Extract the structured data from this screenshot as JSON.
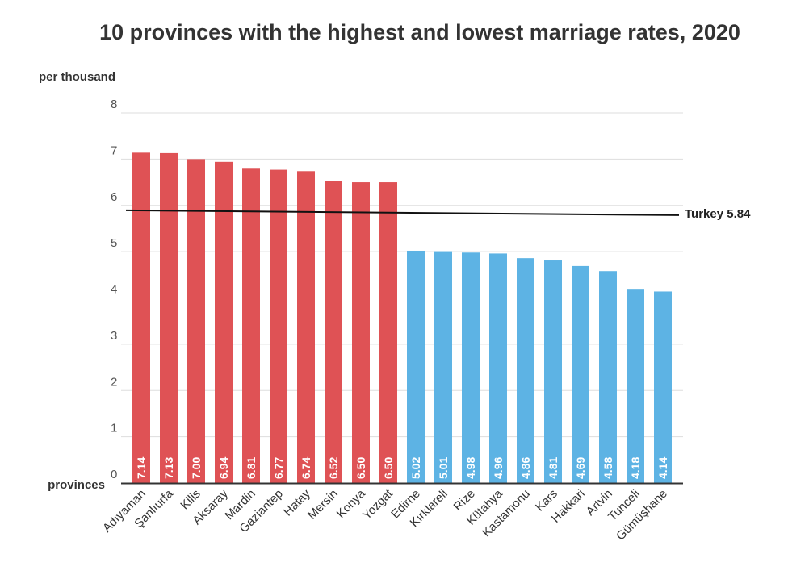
{
  "chart_data": {
    "type": "bar",
    "title": "10 provinces with the highest and lowest marriage rates, 2020",
    "ylabel": "per thousand",
    "xlabel": "provinces",
    "ylim": [
      0,
      8
    ],
    "yticks": [
      0,
      1,
      2,
      3,
      4,
      5,
      6,
      7,
      8
    ],
    "grid": true,
    "categories": [
      "Adıyaman",
      "Şanlıurfa",
      "Kilis",
      "Aksaray",
      "Mardin",
      "Gaziantep",
      "Hatay",
      "Mersin",
      "Konya",
      "Yozgat",
      "Edirne",
      "Kırklareli",
      "Rize",
      "Kütahya",
      "Kastamonu",
      "Kars",
      "Hakkari",
      "Artvin",
      "Tunceli",
      "Gümüşhane"
    ],
    "values": [
      7.14,
      7.13,
      7.0,
      6.94,
      6.81,
      6.77,
      6.74,
      6.52,
      6.5,
      6.5,
      5.02,
      5.01,
      4.98,
      4.96,
      4.86,
      4.81,
      4.69,
      4.58,
      4.18,
      4.14
    ],
    "value_labels": [
      "7.14",
      "7.13",
      "7.00",
      "6.94",
      "6.81",
      "6.77",
      "6.74",
      "6.52",
      "6.50",
      "6.50",
      "5.02",
      "5.01",
      "4.98",
      "4.96",
      "4.86",
      "4.81",
      "4.69",
      "4.58",
      "4.18",
      "4.14"
    ],
    "groups": [
      {
        "name": "highest",
        "count": 10,
        "color": "#df5255"
      },
      {
        "name": "lowest",
        "count": 10,
        "color": "#5db3e4"
      }
    ],
    "reference_line": {
      "label": "Turkey 5.84",
      "value": 5.84,
      "color": "#111111"
    }
  }
}
